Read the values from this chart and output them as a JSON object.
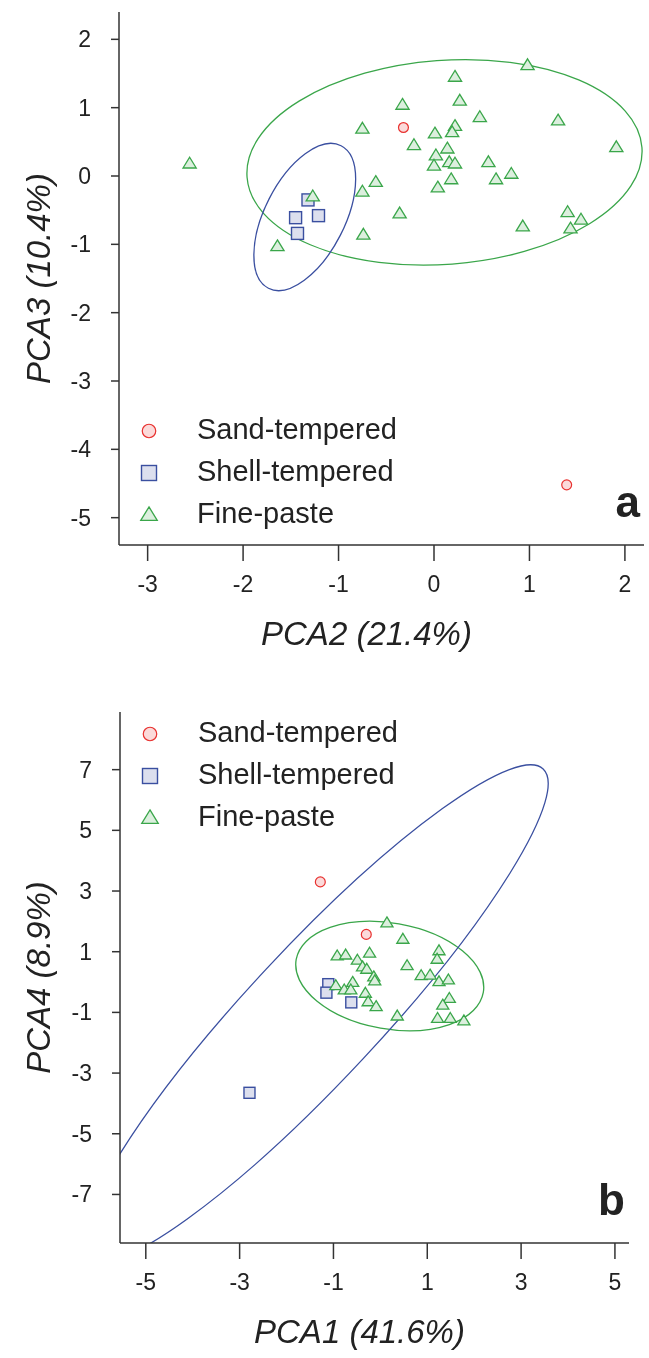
{
  "chart_data": [
    {
      "type": "scatter",
      "xlabel": "PCA2 (21.4%)",
      "ylabel": "PCA3 (10.4%)",
      "xlim": [
        -3.3,
        2.2
      ],
      "ylim": [
        -5.4,
        2.4
      ],
      "xticks": [
        -3,
        -2,
        -1,
        0,
        1,
        2
      ],
      "yticks": [
        2,
        1,
        0,
        -1,
        -2,
        -3,
        -4,
        -5
      ],
      "legend": "bottom left",
      "annotations": [
        "a"
      ],
      "series": [
        {
          "name": "Sand-tempered",
          "color": "#e8312f",
          "marker": "circle",
          "x": [
            -0.32,
            1.39
          ],
          "values": [
            0.71,
            -4.52
          ]
        },
        {
          "name": "Shell-tempered",
          "color": "#3a4fa0",
          "marker": "square",
          "x": [
            -1.32,
            -1.45,
            -1.21,
            -1.43
          ],
          "values": [
            -0.35,
            -0.61,
            -0.58,
            -0.84
          ]
        },
        {
          "name": "Fine-paste",
          "color": "#3aa64a",
          "marker": "triangle",
          "x": [
            -2.56,
            0.98,
            0.22,
            -0.33,
            0.27,
            0.48,
            1.3,
            -0.75,
            0.22,
            0.01,
            0.19,
            -0.21,
            1.91,
            0.14,
            0.02,
            0.0,
            0.16,
            0.22,
            0.57,
            0.81,
            0.65,
            0.18,
            0.04,
            -0.61,
            -0.75,
            -1.27,
            -0.36,
            1.4,
            1.54,
            0.93,
            1.43,
            -0.74,
            -1.64
          ],
          "values": [
            0.18,
            1.62,
            1.45,
            1.04,
            1.1,
            0.86,
            0.81,
            0.69,
            0.73,
            0.62,
            0.64,
            0.45,
            0.42,
            0.4,
            0.3,
            0.15,
            0.2,
            0.18,
            0.2,
            0.03,
            -0.05,
            -0.05,
            -0.17,
            -0.09,
            -0.23,
            -0.3,
            -0.55,
            -0.53,
            -0.64,
            -0.74,
            -0.77,
            -0.86,
            -1.03
          ]
        }
      ]
    },
    {
      "type": "scatter",
      "xlabel": "PCA1 (41.6%)",
      "ylabel": "PCA4 (8.9%)",
      "xlim": [
        -5.55,
        5.3
      ],
      "ylim": [
        -8.6,
        8.9
      ],
      "xticks": [
        -5,
        -3,
        -1,
        1,
        3,
        5
      ],
      "yticks": [
        7,
        5,
        3,
        1,
        -1,
        -3,
        -5,
        -7
      ],
      "legend": "top left",
      "annotations": [
        "b"
      ],
      "series": [
        {
          "name": "Sand-tempered",
          "color": "#e8312f",
          "marker": "circle",
          "x": [
            -1.28,
            -0.3
          ],
          "values": [
            3.3,
            1.57
          ]
        },
        {
          "name": "Shell-tempered",
          "color": "#3a4fa0",
          "marker": "square",
          "x": [
            -1.11,
            -1.15,
            -0.62,
            -2.79
          ],
          "values": [
            -0.07,
            -0.35,
            -0.67,
            -3.65
          ]
        },
        {
          "name": "Fine-paste",
          "color": "#3aa64a",
          "marker": "triangle",
          "x": [
            0.14,
            0.48,
            -0.92,
            -0.74,
            -0.49,
            -0.23,
            1.25,
            1.21,
            -0.38,
            -0.29,
            0.57,
            -0.14,
            -0.12,
            0.87,
            1.06,
            1.25,
            1.45,
            -0.95,
            -0.59,
            -0.77,
            -0.63,
            -0.32,
            1.47,
            1.33,
            -0.26,
            -0.09,
            0.36,
            1.22,
            1.49,
            1.78
          ],
          "values": [
            1.95,
            1.41,
            0.86,
            0.89,
            0.72,
            0.95,
            1.03,
            0.75,
            0.5,
            0.42,
            0.54,
            0.17,
            0.04,
            0.21,
            0.23,
            0.01,
            0.07,
            -0.12,
            -0.01,
            -0.26,
            -0.26,
            -0.37,
            -0.54,
            -0.76,
            -0.65,
            -0.81,
            -1.12,
            -1.2,
            -1.2,
            -1.28
          ]
        }
      ]
    }
  ]
}
